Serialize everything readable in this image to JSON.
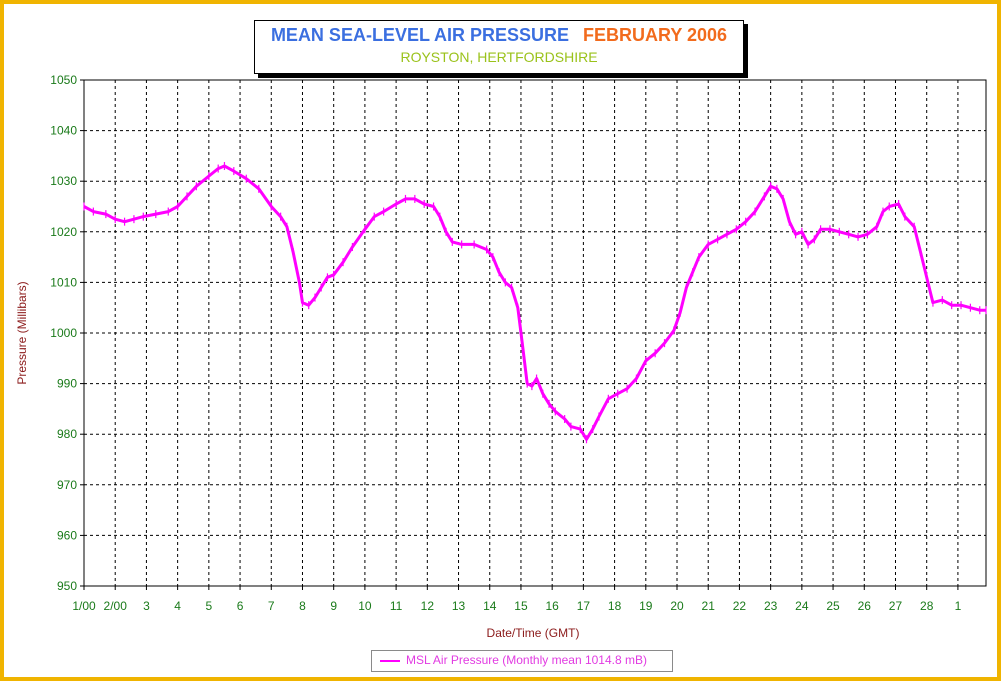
{
  "colors": {
    "frame_border": "#f0b400",
    "title_main": "#3b6fe0",
    "title_month": "#f26b1d",
    "subtitle": "#9ac21a",
    "axis_label": "#8b1a1a",
    "tick_label": "#1a7a1a",
    "series": "#ff00ff"
  },
  "chart_data": {
    "type": "line",
    "title": "MEAN SEA-LEVEL AIR PRESSURE",
    "title_month": "FEBRUARY 2006",
    "subtitle": "ROYSTON, HERTFORDSHIRE",
    "xlabel": "Date/Time (GMT)",
    "ylabel": "Pressure (Millibars)",
    "ylim": [
      950,
      1050
    ],
    "y_ticks": [
      950,
      960,
      970,
      980,
      990,
      1000,
      1010,
      1020,
      1030,
      1040,
      1050
    ],
    "xlim": [
      1,
      29.9
    ],
    "x_ticks": [
      {
        "x": 1,
        "label": "1/00"
      },
      {
        "x": 2,
        "label": "2/00"
      },
      {
        "x": 3,
        "label": "3"
      },
      {
        "x": 4,
        "label": "4"
      },
      {
        "x": 5,
        "label": "5"
      },
      {
        "x": 6,
        "label": "6"
      },
      {
        "x": 7,
        "label": "7"
      },
      {
        "x": 8,
        "label": "8"
      },
      {
        "x": 9,
        "label": "9"
      },
      {
        "x": 10,
        "label": "10"
      },
      {
        "x": 11,
        "label": "11"
      },
      {
        "x": 12,
        "label": "12"
      },
      {
        "x": 13,
        "label": "13"
      },
      {
        "x": 14,
        "label": "14"
      },
      {
        "x": 15,
        "label": "15"
      },
      {
        "x": 16,
        "label": "16"
      },
      {
        "x": 17,
        "label": "17"
      },
      {
        "x": 18,
        "label": "18"
      },
      {
        "x": 19,
        "label": "19"
      },
      {
        "x": 20,
        "label": "20"
      },
      {
        "x": 21,
        "label": "21"
      },
      {
        "x": 22,
        "label": "22"
      },
      {
        "x": 23,
        "label": "23"
      },
      {
        "x": 24,
        "label": "24"
      },
      {
        "x": 25,
        "label": "25"
      },
      {
        "x": 26,
        "label": "26"
      },
      {
        "x": 27,
        "label": "27"
      },
      {
        "x": 28,
        "label": "28"
      },
      {
        "x": 29,
        "label": "1"
      }
    ],
    "grid": true,
    "legend_position": "bottom-center",
    "series": [
      {
        "name": "MSL Air Pressure (Monthly mean 1014.8 mB)",
        "points": [
          [
            1.0,
            1025
          ],
          [
            1.3,
            1024
          ],
          [
            1.7,
            1023.5
          ],
          [
            2.0,
            1022.5
          ],
          [
            2.3,
            1022
          ],
          [
            2.6,
            1022.5
          ],
          [
            2.9,
            1023
          ],
          [
            3.3,
            1023.5
          ],
          [
            3.7,
            1024
          ],
          [
            4.0,
            1025
          ],
          [
            4.3,
            1027
          ],
          [
            4.6,
            1029
          ],
          [
            5.0,
            1031
          ],
          [
            5.3,
            1032.5
          ],
          [
            5.5,
            1033
          ],
          [
            5.8,
            1032
          ],
          [
            6.2,
            1030.5
          ],
          [
            6.6,
            1028.5
          ],
          [
            7.0,
            1025
          ],
          [
            7.3,
            1023
          ],
          [
            7.5,
            1021
          ],
          [
            7.7,
            1016
          ],
          [
            7.9,
            1010
          ],
          [
            8.0,
            1006
          ],
          [
            8.2,
            1005.5
          ],
          [
            8.4,
            1007
          ],
          [
            8.6,
            1009
          ],
          [
            8.8,
            1011
          ],
          [
            9.0,
            1011.5
          ],
          [
            9.3,
            1014
          ],
          [
            9.6,
            1017
          ],
          [
            10.0,
            1020.5
          ],
          [
            10.3,
            1023
          ],
          [
            10.6,
            1024
          ],
          [
            11.0,
            1025.5
          ],
          [
            11.3,
            1026.5
          ],
          [
            11.6,
            1026.5
          ],
          [
            11.9,
            1025.5
          ],
          [
            12.2,
            1025
          ],
          [
            12.4,
            1023
          ],
          [
            12.6,
            1020
          ],
          [
            12.8,
            1018
          ],
          [
            13.1,
            1017.5
          ],
          [
            13.5,
            1017.5
          ],
          [
            13.9,
            1016.5
          ],
          [
            14.1,
            1015
          ],
          [
            14.3,
            1012
          ],
          [
            14.5,
            1010
          ],
          [
            14.7,
            1009
          ],
          [
            14.9,
            1005
          ],
          [
            15.0,
            1000
          ],
          [
            15.1,
            995
          ],
          [
            15.2,
            990
          ],
          [
            15.35,
            989.5
          ],
          [
            15.5,
            991
          ],
          [
            15.7,
            988
          ],
          [
            15.9,
            986
          ],
          [
            16.1,
            984.5
          ],
          [
            16.4,
            983
          ],
          [
            16.6,
            981.5
          ],
          [
            16.9,
            981
          ],
          [
            17.1,
            979
          ],
          [
            17.3,
            981
          ],
          [
            17.5,
            983.5
          ],
          [
            17.8,
            987
          ],
          [
            18.1,
            988
          ],
          [
            18.4,
            989
          ],
          [
            18.7,
            991
          ],
          [
            19.0,
            994.5
          ],
          [
            19.3,
            996
          ],
          [
            19.6,
            998
          ],
          [
            19.9,
            1000.5
          ],
          [
            20.1,
            1004
          ],
          [
            20.3,
            1009
          ],
          [
            20.5,
            1012
          ],
          [
            20.7,
            1015
          ],
          [
            21.0,
            1017.5
          ],
          [
            21.3,
            1018.5
          ],
          [
            21.6,
            1019.5
          ],
          [
            21.9,
            1020.5
          ],
          [
            22.2,
            1022
          ],
          [
            22.5,
            1024
          ],
          [
            22.8,
            1027
          ],
          [
            23.0,
            1029
          ],
          [
            23.2,
            1028.5
          ],
          [
            23.4,
            1026.5
          ],
          [
            23.6,
            1022
          ],
          [
            23.8,
            1019.5
          ],
          [
            24.0,
            1020
          ],
          [
            24.2,
            1017.5
          ],
          [
            24.4,
            1018.5
          ],
          [
            24.6,
            1020.5
          ],
          [
            24.9,
            1020.5
          ],
          [
            25.2,
            1020
          ],
          [
            25.5,
            1019.5
          ],
          [
            25.8,
            1019
          ],
          [
            26.1,
            1019.5
          ],
          [
            26.4,
            1021
          ],
          [
            26.6,
            1024
          ],
          [
            26.8,
            1025
          ],
          [
            27.1,
            1025.5
          ],
          [
            27.3,
            1023
          ],
          [
            27.6,
            1021
          ],
          [
            27.8,
            1016
          ],
          [
            28.0,
            1011
          ],
          [
            28.2,
            1006
          ],
          [
            28.5,
            1006.5
          ],
          [
            28.8,
            1005.5
          ],
          [
            29.1,
            1005.5
          ],
          [
            29.4,
            1005
          ],
          [
            29.7,
            1004.5
          ],
          [
            29.9,
            1004.5
          ]
        ]
      }
    ]
  }
}
